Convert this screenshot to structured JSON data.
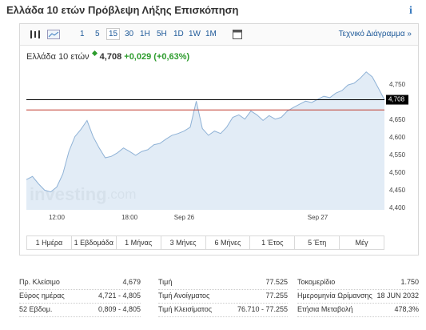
{
  "header": {
    "title": "Ελλάδα 10 ετών Πρόβλεψη Λήξης Επισκόπηση",
    "info_icon": "i"
  },
  "toolbar": {
    "intervals": [
      "1",
      "5",
      "15",
      "30",
      "1H",
      "5H",
      "1D",
      "1W",
      "1M"
    ],
    "link": "Τεχνικό Διάγραμμα »"
  },
  "quote": {
    "name": "Ελλάδα 10 ετών",
    "price": "4,708",
    "change": "+0,029",
    "change_percent": "(+0,63%)"
  },
  "chart_data": {
    "type": "area",
    "color": "#8fb2d6",
    "fill": "#dde9f5",
    "categories": [
      null,
      null,
      null,
      null,
      null,
      "12:00",
      null,
      null,
      null,
      null,
      null,
      null,
      null,
      null,
      null,
      null,
      null,
      "18:00",
      null,
      null,
      null,
      null,
      null,
      null,
      null,
      null,
      "Sep 26",
      null,
      null,
      null,
      null,
      null,
      null,
      null,
      null,
      null,
      null,
      null,
      null,
      null,
      null,
      null,
      null,
      null,
      null,
      null,
      null,
      null,
      "Sep 27",
      null,
      null,
      null,
      null,
      null,
      null,
      null,
      null,
      null,
      null,
      null
    ],
    "values": [
      4.481,
      4.49,
      4.469,
      4.451,
      4.446,
      4.46,
      4.497,
      4.561,
      4.603,
      4.624,
      4.649,
      4.603,
      4.571,
      4.543,
      4.547,
      4.557,
      4.571,
      4.561,
      4.55,
      4.561,
      4.566,
      4.58,
      4.584,
      4.596,
      4.607,
      4.612,
      4.619,
      4.63,
      4.704,
      4.626,
      4.607,
      4.619,
      4.612,
      4.63,
      4.658,
      4.665,
      4.653,
      4.676,
      4.665,
      4.649,
      4.663,
      4.653,
      4.658,
      4.676,
      4.686,
      4.695,
      4.704,
      4.7,
      4.709,
      4.718,
      4.714,
      4.727,
      4.734,
      4.75,
      4.755,
      4.769,
      4.787,
      4.773,
      4.741,
      4.708
    ],
    "ylim": [
      4.395,
      4.798
    ],
    "yticks": [
      {
        "value": 4.4,
        "label": "4,400"
      },
      {
        "value": 4.45,
        "label": "4,450"
      },
      {
        "value": 4.5,
        "label": "4,500"
      },
      {
        "value": 4.55,
        "label": "4,550"
      },
      {
        "value": 4.6,
        "label": "4,600"
      },
      {
        "value": 4.65,
        "label": "4,650"
      },
      {
        "value": 4.75,
        "label": "4,750"
      }
    ],
    "price_line": {
      "value": 4.708,
      "label": "4,708",
      "color": "#000000"
    },
    "previous_close_line": {
      "value": 4.679,
      "color": "#c0392b"
    },
    "watermark": {
      "bold": "investing",
      "light": ".com"
    }
  },
  "ranges": [
    "1 Ημέρα",
    "1 Εβδομάδα",
    "1 Μήνας",
    "3 Μήνες",
    "6 Μήνες",
    "1 Έτος",
    "5 Έτη",
    "Μέγ"
  ],
  "stats": [
    [
      [
        "Πρ. Κλείσιμο",
        "4,679"
      ],
      [
        "Εύρος ημέρας",
        "4,721 - 4,805"
      ],
      [
        "52 Εβδομ.",
        "0,809 - 4,805"
      ]
    ],
    [
      [
        "Τιμή",
        "77.525"
      ],
      [
        "Τιμή Ανοίγματος",
        "77.255"
      ],
      [
        "Τιμή Κλεισίματος",
        "76.710 - 77.255"
      ]
    ],
    [
      [
        "Τοκομερίδιο",
        "1.750"
      ],
      [
        "Ημερομηνία Ωρίμανσης",
        "18 JUN 2032"
      ],
      [
        "Ετήσια Μεταβολή",
        "478,3%"
      ]
    ]
  ]
}
